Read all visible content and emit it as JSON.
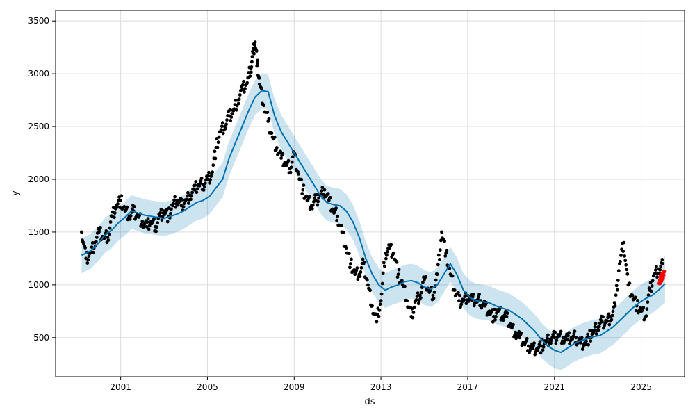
{
  "chart_data": {
    "type": "line",
    "title": "",
    "xlabel": "ds",
    "ylabel": "y",
    "x_ticks": [
      "2001",
      "2005",
      "2009",
      "2013",
      "2017",
      "2021",
      "2025"
    ],
    "y_ticks": [
      "500",
      "1000",
      "1500",
      "2000",
      "2500",
      "3000",
      "3500"
    ],
    "xlim": [
      1998.0,
      2027.0
    ],
    "ylim": [
      130,
      3600
    ],
    "grid": true,
    "colors": {
      "observed": "#000000",
      "forecast_line": "#0072B2",
      "uncertainty_band": "#0072B2",
      "highlight": "#ff0000"
    },
    "series": [
      {
        "role": "forecast",
        "x": [
          1999.2,
          1999.6,
          2000.0,
          2000.3,
          2000.6,
          2000.9,
          2001.2,
          2001.5,
          2001.8,
          2002.1,
          2002.4,
          2002.7,
          2003.0,
          2003.3,
          2003.6,
          2003.9,
          2004.2,
          2004.5,
          2004.8,
          2005.1,
          2005.4,
          2005.7,
          2006.0,
          2006.3,
          2006.6,
          2006.9,
          2007.2,
          2007.5,
          2007.8,
          2008.1,
          2008.4,
          2008.7,
          2009.0,
          2009.3,
          2009.6,
          2009.9,
          2010.2,
          2010.5,
          2010.8,
          2011.1,
          2011.4,
          2011.7,
          2012.0,
          2012.3,
          2012.6,
          2012.9,
          2013.2,
          2013.5,
          2013.8,
          2014.1,
          2014.4,
          2014.7,
          2015.0,
          2015.3,
          2015.6,
          2015.9,
          2016.2,
          2016.5,
          2016.8,
          2017.1,
          2017.4,
          2017.7,
          2018.0,
          2018.3,
          2018.6,
          2018.9,
          2019.2,
          2019.5,
          2019.8,
          2020.1,
          2020.4,
          2020.7,
          2021.0,
          2021.3,
          2021.6,
          2021.9,
          2022.2,
          2022.5,
          2022.8,
          2023.1,
          2023.4,
          2023.7,
          2024.0,
          2024.3,
          2024.6,
          2024.9,
          2025.2,
          2025.5,
          2025.8,
          2026.1
        ],
        "y": [
          1280,
          1320,
          1400,
          1480,
          1520,
          1590,
          1640,
          1700,
          1680,
          1660,
          1650,
          1640,
          1630,
          1650,
          1670,
          1700,
          1740,
          1780,
          1800,
          1840,
          1920,
          2000,
          2200,
          2350,
          2500,
          2650,
          2780,
          2840,
          2830,
          2600,
          2450,
          2350,
          2250,
          2150,
          2050,
          1950,
          1850,
          1780,
          1760,
          1750,
          1700,
          1600,
          1450,
          1250,
          1100,
          1000,
          950,
          980,
          1000,
          1030,
          1040,
          1020,
          980,
          960,
          1000,
          1100,
          1200,
          1100,
          950,
          880,
          850,
          840,
          830,
          800,
          780,
          760,
          720,
          680,
          620,
          560,
          480,
          420,
          380,
          360,
          400,
          440,
          470,
          490,
          510,
          520,
          560,
          600,
          660,
          720,
          780,
          830,
          870,
          900,
          950,
          1010
        ],
        "upper": [
          1440,
          1480,
          1560,
          1640,
          1680,
          1740,
          1790,
          1850,
          1830,
          1810,
          1800,
          1790,
          1780,
          1800,
          1820,
          1850,
          1900,
          1940,
          1960,
          2000,
          2080,
          2160,
          2360,
          2510,
          2660,
          2810,
          2940,
          3000,
          2990,
          2760,
          2610,
          2510,
          2410,
          2310,
          2210,
          2110,
          2010,
          1940,
          1920,
          1910,
          1860,
          1760,
          1610,
          1410,
          1260,
          1160,
          1110,
          1140,
          1160,
          1190,
          1200,
          1180,
          1140,
          1120,
          1160,
          1260,
          1360,
          1260,
          1110,
          1040,
          1010,
          1000,
          990,
          960,
          940,
          920,
          880,
          840,
          780,
          720,
          640,
          580,
          540,
          520,
          560,
          600,
          630,
          650,
          670,
          680,
          720,
          760,
          820,
          880,
          940,
          990,
          1030,
          1060,
          1110,
          1280
        ],
        "lower": [
          1110,
          1150,
          1230,
          1310,
          1350,
          1420,
          1470,
          1530,
          1510,
          1490,
          1480,
          1470,
          1460,
          1480,
          1500,
          1530,
          1570,
          1610,
          1630,
          1670,
          1750,
          1830,
          2030,
          2180,
          2330,
          2480,
          2610,
          2670,
          2660,
          2430,
          2280,
          2180,
          2080,
          1980,
          1880,
          1780,
          1680,
          1610,
          1590,
          1580,
          1530,
          1430,
          1280,
          1080,
          930,
          830,
          780,
          810,
          830,
          860,
          870,
          850,
          810,
          790,
          830,
          930,
          1030,
          930,
          780,
          710,
          680,
          670,
          660,
          630,
          610,
          590,
          550,
          510,
          450,
          390,
          310,
          250,
          210,
          190,
          230,
          270,
          300,
          320,
          340,
          350,
          390,
          430,
          490,
          550,
          610,
          660,
          700,
          730,
          780,
          830
        ]
      },
      {
        "role": "observed",
        "x": [
          1999.2,
          1999.4,
          1999.6,
          1999.8,
          2000.0,
          2000.2,
          2000.4,
          2000.6,
          2000.8,
          2001.0,
          2001.2,
          2001.4,
          2001.6,
          2001.8,
          2002.0,
          2002.2,
          2002.4,
          2002.6,
          2002.8,
          2003.0,
          2003.2,
          2003.4,
          2003.6,
          2003.8,
          2004.0,
          2004.2,
          2004.4,
          2004.6,
          2004.8,
          2005.0,
          2005.2,
          2005.4,
          2005.6,
          2005.8,
          2006.0,
          2006.2,
          2006.4,
          2006.6,
          2006.8,
          2007.0,
          2007.1,
          2007.2,
          2007.3,
          2007.4,
          2007.6,
          2007.8,
          2008.0,
          2008.2,
          2008.4,
          2008.6,
          2008.8,
          2009.0,
          2009.2,
          2009.4,
          2009.6,
          2009.8,
          2010.0,
          2010.2,
          2010.4,
          2010.6,
          2010.8,
          2011.0,
          2011.2,
          2011.4,
          2011.6,
          2011.8,
          2012.0,
          2012.2,
          2012.4,
          2012.6,
          2012.8,
          2013.0,
          2013.2,
          2013.4,
          2013.6,
          2013.8,
          2014.0,
          2014.2,
          2014.4,
          2014.6,
          2014.8,
          2015.0,
          2015.2,
          2015.4,
          2015.6,
          2015.8,
          2016.0,
          2016.2,
          2016.4,
          2016.6,
          2016.8,
          2017.0,
          2017.2,
          2017.4,
          2017.6,
          2017.8,
          2018.0,
          2018.2,
          2018.4,
          2018.6,
          2018.8,
          2019.0,
          2019.2,
          2019.4,
          2019.6,
          2019.8,
          2020.0,
          2020.2,
          2020.4,
          2020.6,
          2020.8,
          2021.0,
          2021.2,
          2021.4,
          2021.6,
          2021.8,
          2022.0,
          2022.2,
          2022.4,
          2022.6,
          2022.8,
          2023.0,
          2023.2,
          2023.4,
          2023.6,
          2023.8,
          2024.0,
          2024.2,
          2024.4,
          2024.6,
          2024.8,
          2025.0,
          2025.2,
          2025.4,
          2025.6,
          2025.8,
          2026.0
        ],
        "y": [
          1500,
          1250,
          1300,
          1400,
          1500,
          1450,
          1450,
          1650,
          1750,
          1800,
          1700,
          1650,
          1700,
          1650,
          1600,
          1550,
          1600,
          1550,
          1650,
          1700,
          1650,
          1750,
          1800,
          1750,
          1800,
          1850,
          1900,
          1950,
          1950,
          2000,
          2050,
          2300,
          2450,
          2500,
          2600,
          2650,
          2750,
          2850,
          2900,
          3050,
          3200,
          3300,
          3100,
          2900,
          2700,
          2550,
          2400,
          2300,
          2200,
          2150,
          2100,
          2250,
          2050,
          1900,
          1800,
          1750,
          1800,
          1850,
          1900,
          1800,
          1700,
          1650,
          1500,
          1350,
          1200,
          1100,
          1100,
          1200,
          1000,
          800,
          650,
          850,
          1300,
          1350,
          1300,
          1100,
          1000,
          850,
          700,
          850,
          900,
          1050,
          950,
          900,
          1100,
          1500,
          1300,
          1100,
          950,
          850,
          850,
          900,
          850,
          850,
          850,
          800,
          750,
          700,
          750,
          700,
          700,
          600,
          550,
          500,
          450,
          420,
          400,
          400,
          420,
          450,
          480,
          500,
          520,
          500,
          480,
          500,
          500,
          450,
          450,
          500,
          550,
          600,
          650,
          650,
          700,
          800,
          1200,
          1400,
          1000,
          900,
          800,
          750,
          700,
          950,
          1100,
          1150,
          1200
        ]
      },
      {
        "role": "highlight",
        "x": [
          2025.85,
          2026.05
        ],
        "y": [
          1040,
          1100
        ]
      }
    ]
  }
}
